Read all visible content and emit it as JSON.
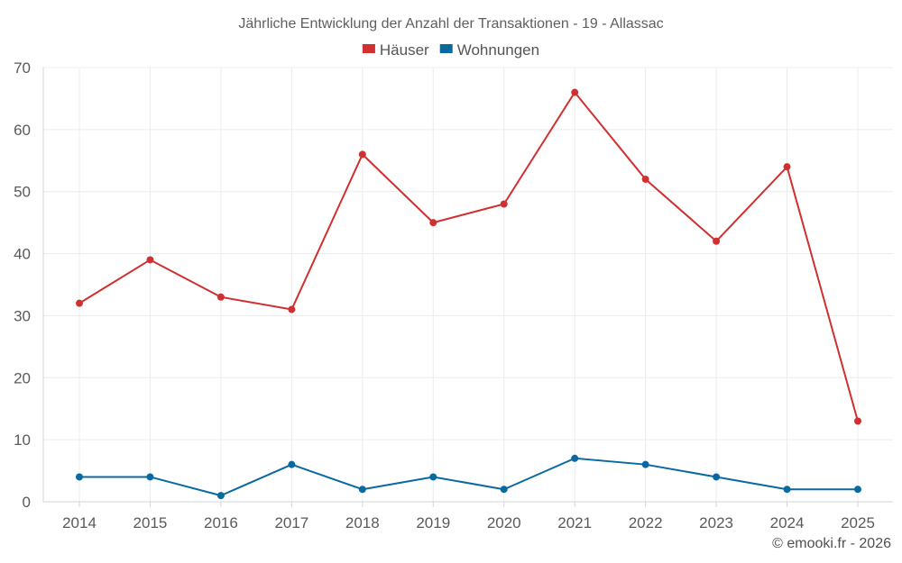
{
  "chart_data": {
    "type": "line",
    "title": "Jährliche Entwicklung der Anzahl der Transaktionen - 19 - Allassac",
    "categories": [
      "2014",
      "2015",
      "2016",
      "2017",
      "2018",
      "2019",
      "2020",
      "2021",
      "2022",
      "2023",
      "2024",
      "2025"
    ],
    "series": [
      {
        "name": "Häuser",
        "color": "#d03030",
        "values": [
          32,
          39,
          33,
          31,
          56,
          45,
          48,
          66,
          52,
          42,
          54,
          13
        ]
      },
      {
        "name": "Wohnungen",
        "color": "#0a6aa0",
        "values": [
          4,
          4,
          1,
          6,
          2,
          4,
          2,
          7,
          6,
          4,
          2,
          2
        ]
      }
    ],
    "ylim": [
      0,
      70
    ],
    "yticks": [
      0,
      10,
      20,
      30,
      40,
      50,
      60,
      70
    ],
    "xlabel": "",
    "ylabel": "",
    "grid": true,
    "legend_position": "top-center"
  },
  "footer": {
    "credit": "© emooki.fr - 2026"
  }
}
